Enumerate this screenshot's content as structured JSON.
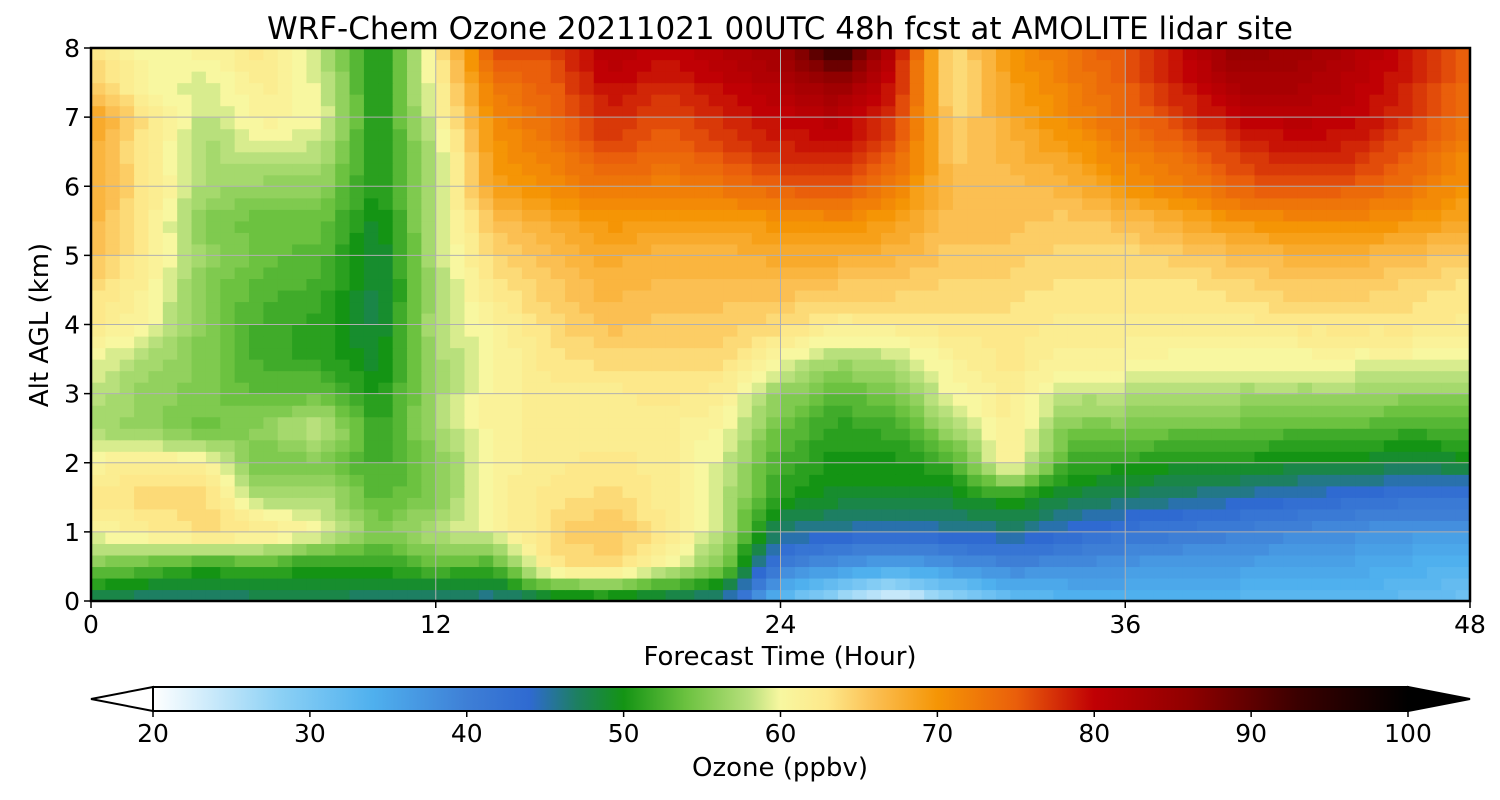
{
  "chart_data": {
    "type": "heatmap",
    "title": "WRF-Chem Ozone  20211021 00UTC 48h fcst at AMOLITE lidar site",
    "xlabel": "Forecast Time (Hour)",
    "ylabel": "Alt AGL (km)",
    "xlim": [
      0,
      48
    ],
    "ylim": [
      0,
      8
    ],
    "x_ticks": [
      "0",
      "12",
      "24",
      "36",
      "48"
    ],
    "y_ticks": [
      "0",
      "1",
      "2",
      "3",
      "4",
      "5",
      "6",
      "7",
      "8"
    ],
    "grid": true,
    "x": [
      0,
      2,
      4,
      6,
      8,
      10,
      12,
      14,
      16,
      18,
      20,
      22,
      24,
      26,
      28,
      30,
      32,
      34,
      36,
      38,
      40,
      42,
      44,
      46,
      48
    ],
    "y": [
      0,
      0.5,
      1,
      1.5,
      2,
      2.5,
      3,
      3.5,
      4,
      4.5,
      5,
      5.5,
      6,
      6.5,
      7,
      7.5,
      8
    ],
    "z": [
      [
        47,
        46,
        46,
        47,
        48,
        46,
        46,
        45,
        47,
        48,
        46,
        45,
        32,
        26,
        21,
        27,
        31,
        33,
        34,
        34,
        33,
        32,
        33,
        32,
        31
      ],
      [
        55,
        53,
        51,
        52,
        50,
        51,
        53,
        52,
        63,
        64,
        60,
        55,
        40,
        37,
        35,
        37,
        39,
        38,
        37,
        36,
        36,
        35,
        35,
        34,
        33
      ],
      [
        60,
        62,
        64,
        63,
        60,
        55,
        58,
        60,
        64,
        66,
        63,
        58,
        46,
        45,
        44,
        45,
        46,
        44,
        42,
        41,
        40,
        39,
        38,
        37,
        37
      ],
      [
        63,
        64,
        64,
        57,
        58,
        53,
        55,
        61,
        63,
        64,
        62,
        58,
        51,
        49,
        49,
        49,
        51,
        48,
        47,
        46,
        45,
        44,
        43,
        42,
        42
      ],
      [
        61,
        62,
        61,
        54,
        55,
        52,
        55,
        61,
        62,
        63,
        62,
        59,
        52,
        50,
        50,
        52,
        62,
        52,
        51,
        50,
        50,
        49,
        49,
        48,
        49
      ],
      [
        57,
        56,
        54,
        56,
        59,
        51,
        57,
        61,
        62,
        62,
        62,
        60,
        54,
        51,
        52,
        57,
        62,
        55,
        55,
        54,
        54,
        53,
        53,
        52,
        53
      ],
      [
        58,
        56,
        55,
        53,
        54,
        50,
        57,
        61,
        62,
        62,
        63,
        62,
        56,
        53,
        55,
        60,
        62,
        58,
        58,
        58,
        57,
        57,
        57,
        56,
        56
      ],
      [
        60,
        57,
        55,
        52,
        51,
        49,
        57,
        60,
        63,
        64,
        64,
        64,
        60,
        57,
        58,
        61,
        63,
        61,
        61,
        60,
        60,
        60,
        60,
        60,
        60
      ],
      [
        63,
        60,
        55,
        52,
        51,
        48,
        58,
        61,
        64,
        66,
        65,
        65,
        64,
        62,
        62,
        63,
        63,
        62,
        62,
        62,
        62,
        63,
        63,
        63,
        62
      ],
      [
        64,
        61,
        55,
        53,
        52,
        48,
        57,
        63,
        65,
        67,
        66,
        66,
        66,
        65,
        65,
        64,
        64,
        63,
        63,
        63,
        64,
        65,
        65,
        64,
        63
      ],
      [
        66,
        62,
        56,
        54,
        53,
        48,
        58,
        64,
        66,
        68,
        67,
        67,
        68,
        68,
        67,
        65,
        65,
        64,
        64,
        65,
        66,
        67,
        67,
        66,
        65
      ],
      [
        67,
        62,
        55,
        54,
        54,
        49,
        58,
        66,
        68,
        70,
        69,
        69,
        70,
        71,
        69,
        66,
        66,
        65,
        66,
        68,
        70,
        71,
        71,
        70,
        68
      ],
      [
        68,
        63,
        57,
        56,
        56,
        50,
        58,
        69,
        71,
        73,
        72,
        73,
        75,
        76,
        72,
        66,
        66,
        67,
        70,
        72,
        75,
        76,
        75,
        73,
        70
      ],
      [
        68,
        62,
        57,
        59,
        58,
        50,
        58,
        70,
        72,
        76,
        74,
        76,
        78,
        79,
        75,
        65,
        67,
        69,
        72,
        74,
        77,
        79,
        78,
        75,
        71
      ],
      [
        69,
        63,
        58,
        61,
        60,
        50,
        60,
        71,
        74,
        78,
        76,
        78,
        80,
        81,
        77,
        64,
        68,
        71,
        74,
        77,
        80,
        81,
        80,
        77,
        73
      ],
      [
        65,
        60,
        59,
        62,
        59,
        50,
        61,
        73,
        75,
        80,
        78,
        80,
        82,
        85,
        79,
        63,
        69,
        72,
        75,
        79,
        83,
        83,
        81,
        78,
        74
      ],
      [
        63,
        60,
        61,
        63,
        58,
        50,
        62,
        76,
        76,
        82,
        80,
        82,
        84,
        95,
        80,
        63,
        70,
        73,
        76,
        80,
        86,
        84,
        82,
        79,
        75
      ]
    ]
  },
  "colorbar": {
    "label": "Ozone  (ppbv)",
    "min": 20,
    "max": 100,
    "ticks": [
      "20",
      "30",
      "40",
      "50",
      "60",
      "70",
      "80",
      "90",
      "100"
    ],
    "extend": "both",
    "stops": [
      [
        20,
        "#ffffff"
      ],
      [
        28,
        "#8dd1f5"
      ],
      [
        34,
        "#4fb0ee"
      ],
      [
        40,
        "#3e7fd6"
      ],
      [
        44,
        "#2f6ad1"
      ],
      [
        47,
        "#1d7f62"
      ],
      [
        50,
        "#149414"
      ],
      [
        54,
        "#6cc240"
      ],
      [
        58,
        "#b8e07c"
      ],
      [
        60,
        "#f8f7a0"
      ],
      [
        63,
        "#fde88a"
      ],
      [
        66,
        "#fbbf52"
      ],
      [
        70,
        "#f59505"
      ],
      [
        75,
        "#ea5f0b"
      ],
      [
        80,
        "#c00004"
      ],
      [
        86,
        "#900000"
      ],
      [
        93,
        "#3a0000"
      ],
      [
        100,
        "#000000"
      ]
    ]
  }
}
